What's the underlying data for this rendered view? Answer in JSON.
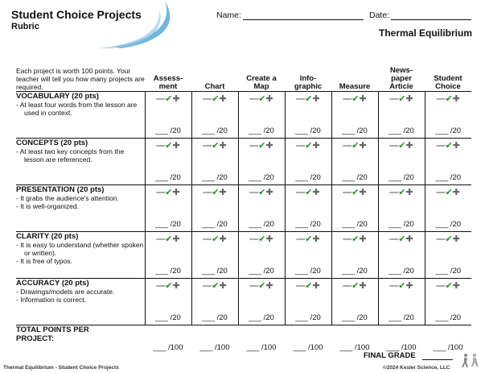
{
  "header": {
    "title": "Student Choice Projects",
    "subtitle": "Rubric",
    "name_label": "Name:",
    "date_label": "Date:",
    "topic": "Thermal Equilibrium"
  },
  "intro_text": "Each project is worth 100 points. Your teacher will tell you how many projects are required.",
  "projects": [
    "Assess-\nment",
    "Chart",
    "Create a\nMap",
    "Info-\ngraphic",
    "Measure",
    "News-\npaper\nArticle",
    "Student\nChoice"
  ],
  "criteria": [
    {
      "title": "VOCABULARY (20 pts)",
      "bullets": [
        "- At least four words from the lesson are used in context."
      ]
    },
    {
      "title": "CONCEPTS (20 pts)",
      "bullets": [
        "- At least two key concepts from the lesson are referenced."
      ]
    },
    {
      "title": "PRESENTATION (20 pts)",
      "bullets": [
        "- It grabs the audience's attention.",
        "- It is well-organized."
      ]
    },
    {
      "title": "CLARITY (20 pts)",
      "bullets": [
        "- It is easy to understand (whether spoken or written).",
        "- It is free of typos."
      ]
    },
    {
      "title": "ACCURACY (20 pts)",
      "bullets": [
        "- Drawings/models are accurate.",
        "- Information is correct."
      ]
    }
  ],
  "marks": {
    "minus": "—",
    "check": "✔",
    "plus": "✚"
  },
  "score_blank": "___ /20",
  "total_label": "TOTAL POINTS PER\nPROJECT:",
  "total_blank": "___ /100",
  "final_grade_label": "FINAL GRADE",
  "footer": {
    "left": "Thermal Equilibrium - Student Choice Projects",
    "right": "©2024  Kesler Science, LLC"
  },
  "colors": {
    "check": "#2e8b2e",
    "swoosh": "#5aa9d6"
  }
}
